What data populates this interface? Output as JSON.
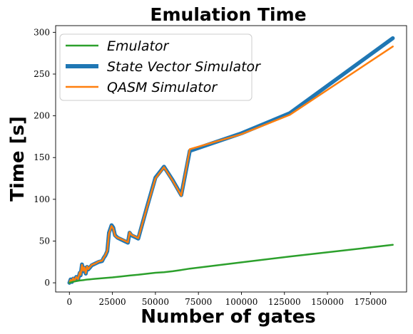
{
  "chart_data": {
    "type": "line",
    "title": "Emulation Time",
    "xlabel": "Number of gates",
    "ylabel": "Time [s]",
    "xlim": [
      -8000,
      196000
    ],
    "ylim": [
      -11,
      308
    ],
    "xticks": [
      0,
      25000,
      50000,
      75000,
      100000,
      125000,
      150000,
      175000
    ],
    "yticks": [
      0,
      50,
      100,
      150,
      200,
      250,
      300
    ],
    "grid": false,
    "legend_position": "top-left",
    "series": [
      {
        "name": "Emulator",
        "color": "#2ca02c",
        "x": [
          0,
          1000,
          2000,
          4000,
          6000,
          8000,
          10000,
          12000,
          15000,
          20000,
          25000,
          30000,
          35000,
          40000,
          50000,
          55000,
          60000,
          64000,
          70000,
          100000,
          128000,
          150000,
          188000
        ],
        "y": [
          0,
          0.6,
          1.2,
          2,
          2.7,
          3.2,
          3.8,
          4.2,
          4.8,
          5.6,
          6.5,
          7.6,
          8.7,
          9.6,
          12,
          12.6,
          13.8,
          15,
          17,
          24.5,
          31.5,
          36.5,
          45.5
        ]
      },
      {
        "name": "State Vector Simulator",
        "color": "#1f77b4",
        "x": [
          0,
          700,
          1500,
          2200,
          3000,
          4000,
          5000,
          6000,
          6500,
          7300,
          8000,
          8700,
          9500,
          10300,
          11000,
          13000,
          15000,
          17000,
          19000,
          20000,
          21000,
          22000,
          23000,
          24500,
          25500,
          26500,
          28000,
          30000,
          32000,
          34000,
          35000,
          36000,
          38000,
          40000,
          45000,
          50000,
          55000,
          60000,
          65000,
          70000,
          100000,
          128000,
          188000
        ],
        "y": [
          0,
          4,
          1,
          5,
          3,
          7,
          4,
          12,
          9,
          22,
          14,
          18,
          11,
          19,
          16,
          21,
          23,
          25,
          26,
          30,
          33,
          38,
          60,
          69,
          66,
          57,
          54,
          52,
          50,
          48,
          60,
          57,
          55,
          53,
          90,
          126,
          139,
          123,
          105,
          158,
          179,
          203,
          293
        ]
      },
      {
        "name": "QASM Simulator",
        "color": "#ff7f0e",
        "x": [
          0,
          700,
          1500,
          2200,
          3000,
          4000,
          5000,
          6000,
          6500,
          7300,
          8000,
          8700,
          9500,
          10300,
          11000,
          13000,
          15000,
          17000,
          19000,
          20000,
          21000,
          22000,
          23000,
          24500,
          25500,
          26500,
          28000,
          30000,
          32000,
          34000,
          35000,
          36000,
          38000,
          40000,
          45000,
          50000,
          55000,
          60000,
          65000,
          70000,
          100000,
          128000,
          188000
        ],
        "y": [
          0,
          3.5,
          1.5,
          5.5,
          2.5,
          7,
          4.5,
          12.5,
          9.5,
          21.5,
          14.5,
          18.5,
          11.5,
          19.5,
          16.5,
          21.5,
          23,
          25.5,
          26.5,
          30,
          33.5,
          38.5,
          59,
          68,
          65,
          56.5,
          54,
          52.5,
          50.5,
          48.5,
          60.5,
          57.5,
          55.5,
          53.5,
          89.5,
          125,
          138.5,
          122.5,
          104.5,
          160,
          178,
          201,
          283
        ]
      }
    ]
  }
}
